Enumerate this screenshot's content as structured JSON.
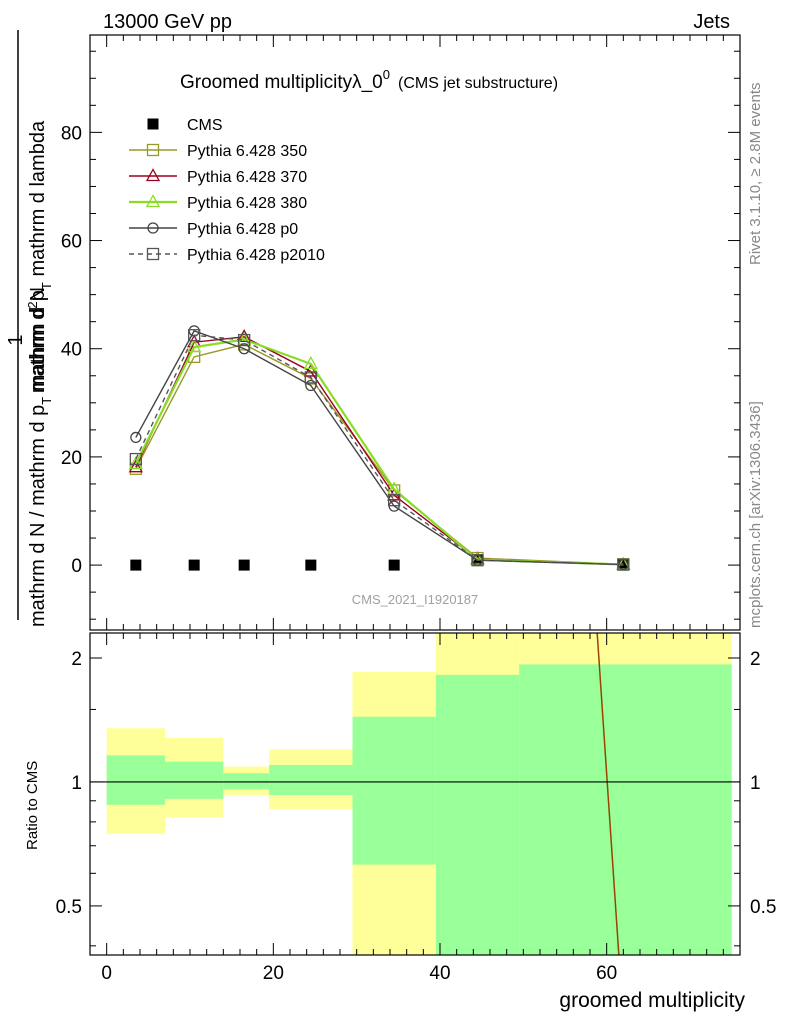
{
  "header": {
    "left": "13000 GeV pp",
    "right": "Jets"
  },
  "side_labels": {
    "rivet": "Rivet 3.1.10, ≥ 2.8M events",
    "mcplots": "mcplots.cern.ch [arXiv:1306.3436]"
  },
  "watermark": "CMS_2021_I1920187",
  "chart_data": [
    {
      "type": "line",
      "title_main": "Groomed multiplicityλ_0",
      "title_sup": "0",
      "title_sub": "(CMS jet substructure)",
      "ylabel_num": "1",
      "ylabel_den": "mathrm d N / mathrm d p",
      "ylabel_den_sub": "T",
      "ylabel_num_rest": "mathrm d",
      "ylabel_num_sup": "2",
      "ylabel_num_tail": "N",
      "ylabel_den2": "mathrm d p",
      "ylabel_den2_sub": "T",
      "ylabel_den2_tail": " mathrm d lambda",
      "xlim": [
        -2,
        76
      ],
      "ylim": [
        -12,
        98
      ],
      "yticks": [
        "0",
        "20",
        "40",
        "60",
        "80"
      ],
      "x": [
        3.5,
        10.5,
        16.5,
        24.5,
        34.5,
        44.5,
        62
      ],
      "series": [
        {
          "name": "CMS",
          "color": "#000000",
          "marker": "filled-square",
          "dashed": false,
          "values": [
            0,
            0,
            0,
            0,
            0,
            1,
            0
          ]
        },
        {
          "name": "Pythia 6.428 350",
          "color": "#999926",
          "marker": "open-square",
          "dashed": false,
          "values": [
            17.8,
            38.5,
            40.8,
            34.5,
            13.8,
            1.3,
            0.15
          ]
        },
        {
          "name": "Pythia 6.428 370",
          "color": "#990022",
          "marker": "open-triangle",
          "dashed": false,
          "values": [
            18.1,
            41.2,
            42.2,
            35.8,
            12.9,
            1.1,
            0.1
          ]
        },
        {
          "name": "Pythia 6.428 380",
          "color": "#88dd22",
          "marker": "open-triangle",
          "dashed": false,
          "values": [
            18.7,
            40.3,
            41.7,
            37.2,
            14.0,
            1.0,
            0.1
          ]
        },
        {
          "name": "Pythia 6.428 p0",
          "color": "#444444",
          "marker": "open-circle",
          "dashed": false,
          "values": [
            23.6,
            43.3,
            40.0,
            33.2,
            10.9,
            0.9,
            0.1
          ]
        },
        {
          "name": "Pythia 6.428 p2010",
          "color": "#555555",
          "marker": "open-square",
          "dashed": true,
          "values": [
            19.6,
            42.5,
            41.6,
            34.7,
            12.0,
            0.9,
            0.1
          ]
        }
      ]
    },
    {
      "type": "area",
      "ylabel": "Ratio to CMS",
      "xlabel": "groomed multiplicity",
      "xlim": [
        -2,
        76
      ],
      "ylim": [
        0.38,
        2.3
      ],
      "log_y": true,
      "yticks": [
        "0.5",
        "1",
        "2"
      ],
      "xticks": [
        "0",
        "20",
        "40",
        "60"
      ],
      "bins": [
        {
          "x0": 0,
          "x1": 7,
          "yellow": [
            0.75,
            1.35
          ],
          "green": [
            0.88,
            1.16
          ]
        },
        {
          "x0": 7,
          "x1": 14,
          "yellow": [
            0.82,
            1.28
          ],
          "green": [
            0.91,
            1.12
          ]
        },
        {
          "x0": 14,
          "x1": 19.5,
          "yellow": [
            0.93,
            1.09
          ],
          "green": [
            0.96,
            1.05
          ]
        },
        {
          "x0": 19.5,
          "x1": 29.5,
          "yellow": [
            0.86,
            1.2
          ],
          "green": [
            0.93,
            1.1
          ]
        },
        {
          "x0": 29.5,
          "x1": 39.5,
          "yellow": [
            0.33,
            1.85
          ],
          "green": [
            0.63,
            1.44
          ]
        },
        {
          "x0": 39.5,
          "x1": 49.5,
          "yellow": [
            0.33,
            3.0
          ],
          "green": [
            0.33,
            1.82
          ]
        },
        {
          "x0": 49.5,
          "x1": 75,
          "yellow": [
            0.33,
            3.0
          ],
          "green": [
            0.33,
            1.93
          ]
        }
      ],
      "ratio_line": {
        "color": "#994400",
        "points": [
          [
            58.8,
            2.4
          ],
          [
            61.5,
            0.37
          ]
        ]
      }
    }
  ]
}
